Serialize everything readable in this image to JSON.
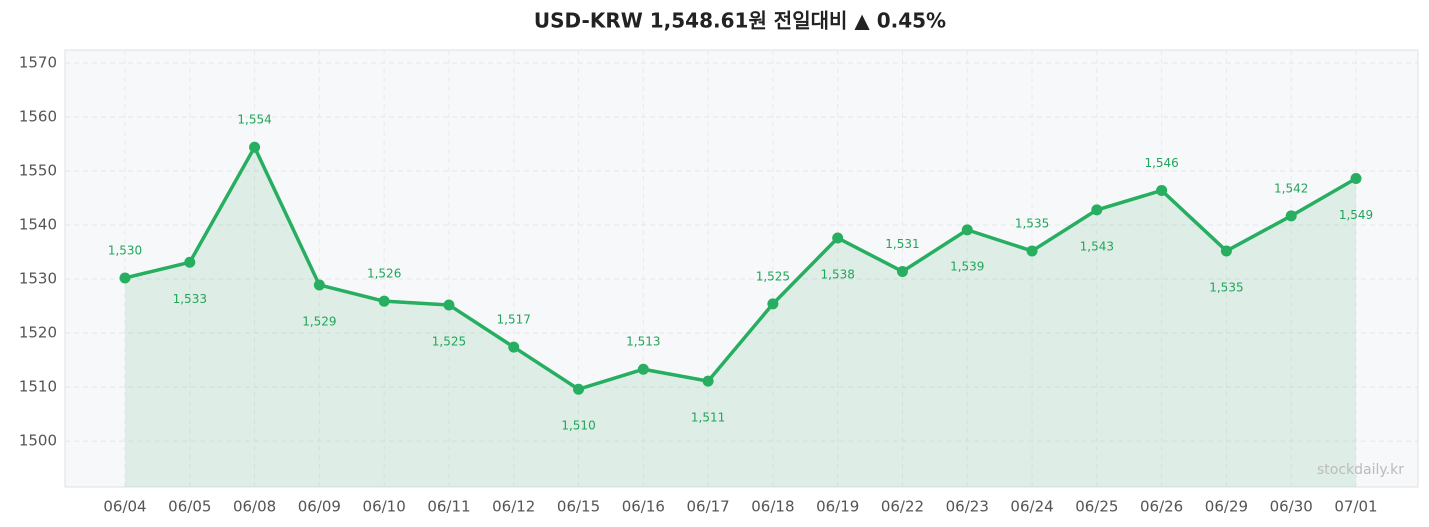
{
  "chart_data": {
    "type": "line",
    "title": "USD-KRW  1,548.61원  전일대비 ▲ 0.45%",
    "watermark": "stockdaily.kr",
    "categories": [
      "06/04",
      "06/05",
      "06/08",
      "06/09",
      "06/10",
      "06/11",
      "06/12",
      "06/15",
      "06/16",
      "06/17",
      "06/18",
      "06/19",
      "06/22",
      "06/23",
      "06/24",
      "06/25",
      "06/26",
      "06/29",
      "06/30",
      "07/01"
    ],
    "series": [
      {
        "name": "USD-KRW",
        "color": "#27ae60",
        "values": [
          1530.2,
          1533.1,
          1554.4,
          1528.9,
          1525.9,
          1525.2,
          1517.4,
          1509.6,
          1513.3,
          1511.1,
          1525.4,
          1537.6,
          1531.4,
          1539.1,
          1535.2,
          1542.8,
          1546.4,
          1535.2,
          1541.7,
          1548.61
        ],
        "value_labels": [
          "1,530",
          "1,533",
          "1,554",
          "1,529",
          "1,526",
          "1,525",
          "1,517",
          "1,510",
          "1,513",
          "1,511",
          "1,525",
          "1,538",
          "1,531",
          "1,539",
          "1,535",
          "1,543",
          "1,546",
          "1,535",
          "1,542",
          "1,549"
        ]
      }
    ],
    "ylim": [
      1491.5,
      1572.4
    ],
    "yticks": [
      1500,
      1510,
      1520,
      1530,
      1540,
      1550,
      1560,
      1570
    ],
    "grid": true
  }
}
